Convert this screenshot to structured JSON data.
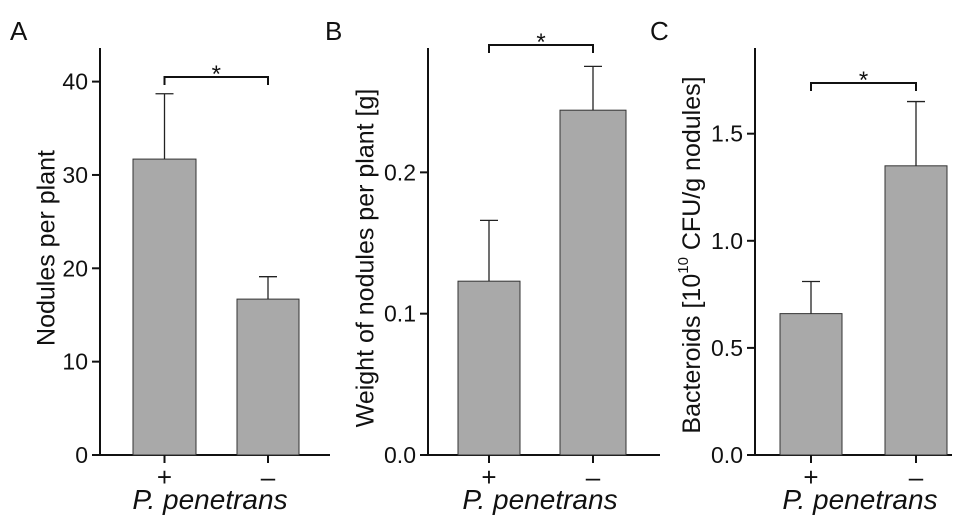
{
  "chart_data": [
    {
      "panel": "A",
      "type": "bar",
      "categories": [
        "+",
        "–"
      ],
      "values": [
        31.7,
        16.7
      ],
      "errors": [
        7.0,
        2.4
      ],
      "ylabel": "Nodules per plant",
      "xlabel": "P. penetrans",
      "ylim": [
        0,
        43.6
      ],
      "yticks": [
        0,
        10,
        20,
        30,
        40
      ],
      "ytick_labels": [
        "0",
        "10",
        "20",
        "30",
        "40"
      ],
      "significance": "*",
      "bar_color": "#a9a9a9",
      "grid": false
    },
    {
      "panel": "B",
      "type": "bar",
      "categories": [
        "+",
        "–"
      ],
      "values": [
        0.123,
        0.244
      ],
      "errors": [
        0.043,
        0.031
      ],
      "ylabel": "Weight of nodules per plant [g]",
      "xlabel": "P. penetrans",
      "ylim": [
        0,
        0.288
      ],
      "yticks": [
        0.0,
        0.1,
        0.2
      ],
      "ytick_labels": [
        "0.0",
        "0.1",
        "0.2"
      ],
      "significance": "*",
      "bar_color": "#a9a9a9",
      "grid": false
    },
    {
      "panel": "C",
      "type": "bar",
      "categories": [
        "+",
        "–"
      ],
      "values": [
        0.66,
        1.35
      ],
      "errors": [
        0.15,
        0.3
      ],
      "ylabel": "Bacteroids [10",
      "ylabel_sup": "10",
      "ylabel_end": " CFU/g nodules]",
      "xlabel": "P. penetrans",
      "ylim": [
        0,
        1.9
      ],
      "yticks": [
        0.0,
        0.5,
        1.0,
        1.5
      ],
      "ytick_labels": [
        "0.0",
        "0.5",
        "1.0",
        "1.5"
      ],
      "significance": "*",
      "bar_color": "#a9a9a9",
      "grid": false
    }
  ]
}
